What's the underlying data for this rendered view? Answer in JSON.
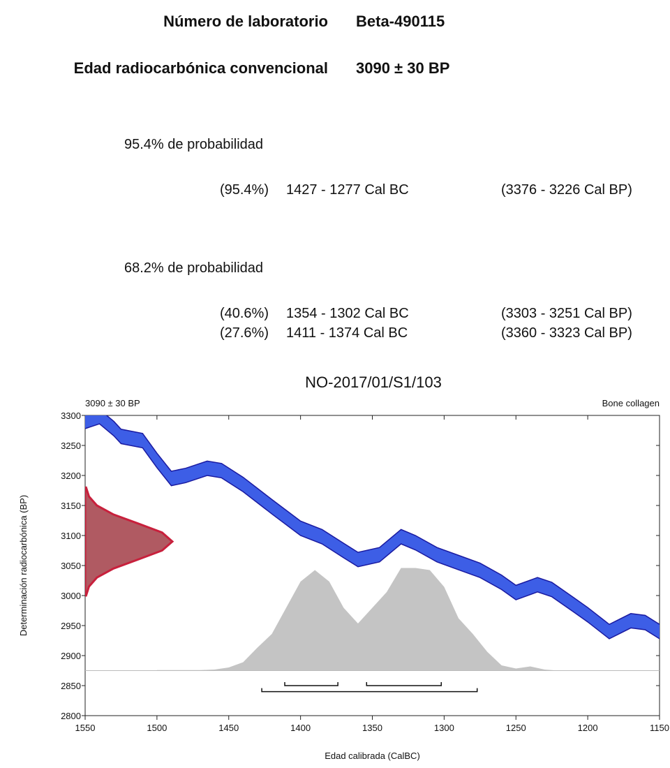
{
  "header": {
    "lab_label": "Número de laboratorio",
    "lab_value": "Beta-490115",
    "age_label": "Edad radiocarbónica convencional",
    "age_value": "3090 ± 30 BP"
  },
  "probabilities": [
    {
      "title": "95.4% de probabilidad",
      "rows": [
        {
          "percent": "(95.4%)",
          "cal_bc": "1427 - 1277 Cal BC",
          "cal_bp": "(3376 - 3226 Cal BP)",
          "range": [
            1427,
            1277
          ]
        }
      ]
    },
    {
      "title": "68.2% de probabilidad",
      "rows": [
        {
          "percent": "(40.6%)",
          "cal_bc": "1354 - 1302 Cal BC",
          "cal_bp": "(3303 - 3251 Cal BP)",
          "range": [
            1354,
            1302
          ]
        },
        {
          "percent": "(27.6%)",
          "cal_bc": "1411 - 1374 Cal BC",
          "cal_bp": "(3360 - 3323 Cal BP)",
          "range": [
            1411,
            1374
          ]
        }
      ]
    }
  ],
  "chart_data": {
    "type": "calibration",
    "title": "NO-2017/01/S1/103",
    "subtitle_left": "3090 ± 30 BP",
    "subtitle_right": "Bone collagen",
    "x_label": "Edad calibrada (CalBC)",
    "y_label": "Determinación radiocarbónica (BP)",
    "xlim": [
      1550,
      1150
    ],
    "xticks": [
      1550,
      1500,
      1450,
      1400,
      1350,
      1300,
      1250,
      1200,
      1150
    ],
    "ylim": [
      2800,
      3300
    ],
    "yticks": [
      2800,
      2850,
      2900,
      2950,
      3000,
      3050,
      3100,
      3150,
      3200,
      3250,
      3300
    ],
    "curve": {
      "color": "#3d5ee6",
      "x": [
        1550,
        1540,
        1530,
        1525,
        1510,
        1500,
        1490,
        1480,
        1465,
        1455,
        1440,
        1420,
        1400,
        1385,
        1370,
        1360,
        1345,
        1330,
        1320,
        1305,
        1290,
        1275,
        1260,
        1250,
        1235,
        1225,
        1210,
        1200,
        1185,
        1170,
        1160,
        1150
      ],
      "upper": [
        3302,
        3310,
        3290,
        3277,
        3270,
        3237,
        3207,
        3212,
        3224,
        3220,
        3197,
        3160,
        3124,
        3110,
        3087,
        3072,
        3080,
        3110,
        3100,
        3080,
        3067,
        3054,
        3034,
        3017,
        3030,
        3022,
        2997,
        2980,
        2952,
        2970,
        2967,
        2952
      ],
      "lower": [
        3278,
        3286,
        3266,
        3253,
        3246,
        3213,
        3183,
        3188,
        3200,
        3196,
        3173,
        3136,
        3100,
        3086,
        3063,
        3048,
        3056,
        3086,
        3076,
        3056,
        3043,
        3030,
        3010,
        2993,
        3006,
        2998,
        2973,
        2956,
        2928,
        2946,
        2943,
        2928
      ]
    },
    "measurement": {
      "color": "#c8203c",
      "y": [
        3000,
        3015,
        3030,
        3045,
        3060,
        3075,
        3090,
        3105,
        3120,
        3135,
        3150,
        3165,
        3180
      ],
      "density": [
        0.011,
        0.044,
        0.135,
        0.325,
        0.607,
        0.882,
        1,
        0.882,
        0.607,
        0.325,
        0.135,
        0.044,
        0.011
      ]
    },
    "calibrated": {
      "color": "#c4c4c4",
      "baseline": 2875,
      "x": [
        1500,
        1490,
        1480,
        1470,
        1460,
        1450,
        1440,
        1430,
        1420,
        1410,
        1400,
        1390,
        1380,
        1370,
        1360,
        1350,
        1340,
        1330,
        1320,
        1310,
        1300,
        1290,
        1280,
        1270,
        1260,
        1250,
        1240,
        1230,
        1220
      ],
      "density": [
        0.005,
        0.005,
        0.005,
        0.005,
        0.01,
        0.03,
        0.08,
        0.22,
        0.35,
        0.6,
        0.85,
        0.96,
        0.85,
        0.6,
        0.45,
        0.6,
        0.75,
        0.98,
        0.98,
        0.96,
        0.8,
        0.5,
        0.35,
        0.18,
        0.05,
        0.02,
        0.04,
        0.01,
        0
      ]
    }
  }
}
